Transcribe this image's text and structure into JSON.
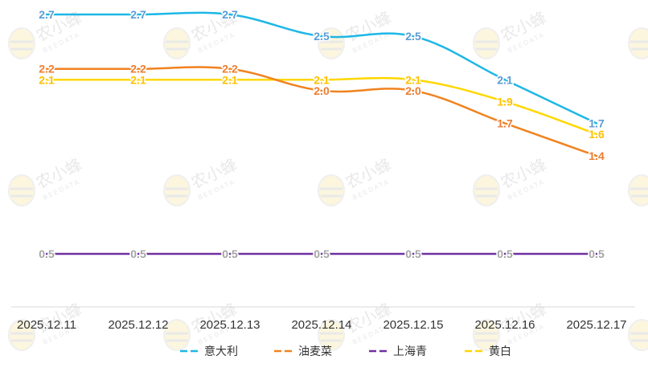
{
  "chart_data": {
    "type": "line",
    "categories": [
      "2025.12.11",
      "2025.12.12",
      "2025.12.13",
      "2025.12.14",
      "2025.12.15",
      "2025.12.16",
      "2025.12.17"
    ],
    "series": [
      {
        "name": "意大利",
        "color": "#1db7e6",
        "label_color": "#5b9bd5",
        "values": [
          2.7,
          2.7,
          2.7,
          2.5,
          2.5,
          2.1,
          1.7
        ]
      },
      {
        "name": "油麦菜",
        "color": "#f0821e",
        "label_color": "#ed7d31",
        "values": [
          2.2,
          2.2,
          2.2,
          2.0,
          2.0,
          1.7,
          1.4
        ]
      },
      {
        "name": "上海青",
        "color": "#7030a0",
        "label_color": "#a5a5a5",
        "values": [
          0.5,
          0.5,
          0.5,
          0.5,
          0.5,
          0.5,
          0.5
        ]
      },
      {
        "name": "黄白",
        "color": "#ffd700",
        "label_color": "#ffc000",
        "values": [
          2.1,
          2.1,
          2.1,
          2.1,
          2.1,
          1.9,
          1.6
        ]
      }
    ],
    "axis_color": "#d9d9d9",
    "legend_position": "bottom",
    "grid": false
  },
  "watermark": {
    "brand_text": "农小蜂",
    "brand_sub": "BEEDATA",
    "icon": "bee-icon"
  }
}
